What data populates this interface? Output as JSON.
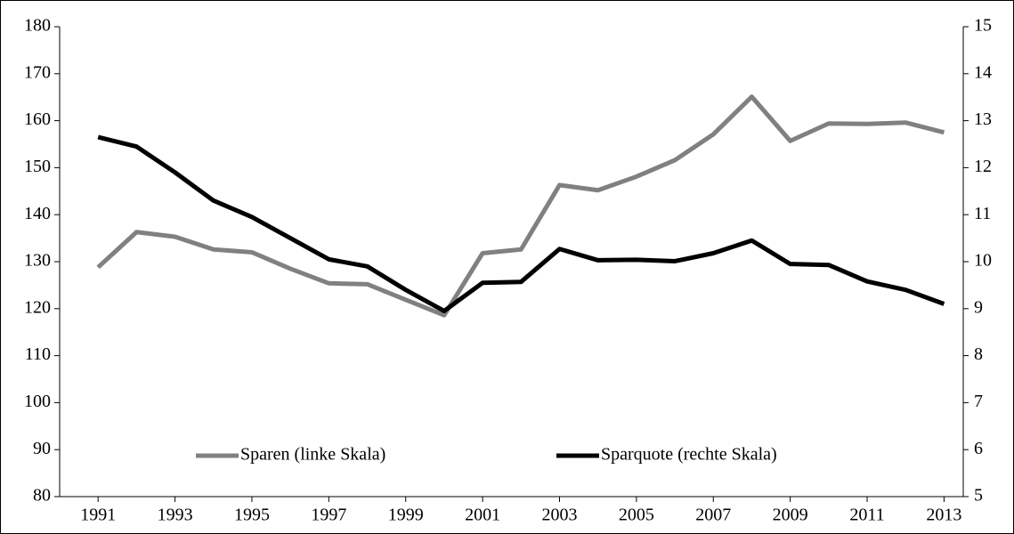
{
  "chart_data": {
    "type": "line",
    "x": [
      1991,
      1992,
      1993,
      1994,
      1995,
      1996,
      1997,
      1998,
      1999,
      2000,
      2001,
      2002,
      2003,
      2004,
      2005,
      2006,
      2007,
      2008,
      2009,
      2010,
      2011,
      2012,
      2013
    ],
    "xlim": [
      1990,
      2013.5
    ],
    "xticks": [
      1991,
      1993,
      1995,
      1997,
      1999,
      2001,
      2003,
      2005,
      2007,
      2009,
      2011,
      2013
    ],
    "ylim": [
      80,
      180
    ],
    "yticks": [
      80,
      90,
      100,
      110,
      120,
      130,
      140,
      150,
      160,
      170,
      180
    ],
    "y2lim": [
      5,
      15
    ],
    "y2ticks": [
      5,
      6,
      7,
      8,
      9,
      10,
      11,
      12,
      13,
      14,
      15
    ],
    "grid": false,
    "legend": "bottom",
    "series": [
      {
        "name": "Sparen (linke Skala)",
        "color": "#808080",
        "values": [
          128.8,
          136.3,
          135.3,
          132.6,
          132.0,
          128.5,
          125.4,
          125.2,
          121.9,
          118.6,
          131.8,
          132.6,
          146.3,
          145.2,
          148.1,
          151.6,
          157.1,
          165.1,
          155.7,
          159.4,
          159.3,
          159.6,
          157.5
        ]
      },
      {
        "name": "Sparquote (rechte Skala)",
        "color": "#000000",
        "axis": "y2",
        "values": [
          12.65,
          12.45,
          11.9,
          11.3,
          10.95,
          10.5,
          10.05,
          9.9,
          9.4,
          8.95,
          9.55,
          9.57,
          10.27,
          10.03,
          10.04,
          10.01,
          10.18,
          10.45,
          9.95,
          9.93,
          9.58,
          9.4,
          9.1
        ]
      }
    ]
  }
}
